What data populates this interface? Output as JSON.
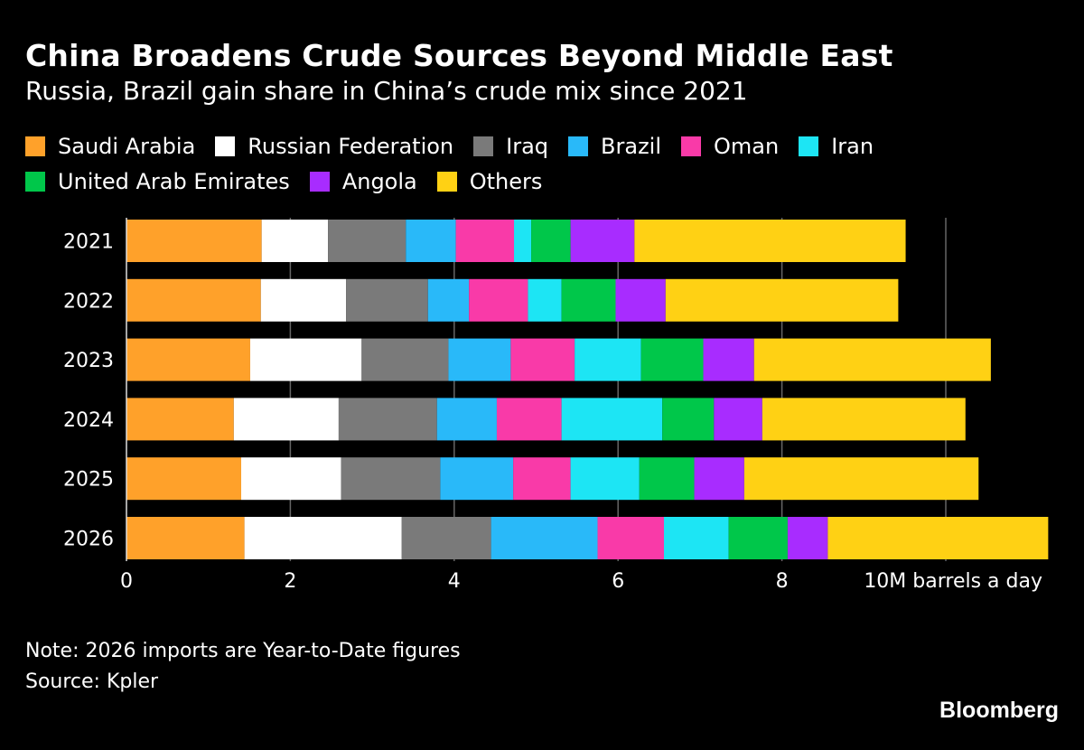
{
  "title": "China Broadens Crude Sources Beyond Middle East",
  "subtitle": "Russia, Brazil gain share in China’s crude mix since 2021",
  "note": "Note: 2026 imports are Year-to-Date figures",
  "source": "Source: Kpler",
  "logo": "Bloomberg",
  "chart_data": {
    "type": "bar",
    "orientation": "horizontal",
    "stacked": true,
    "categories": [
      "2021",
      "2022",
      "2023",
      "2024",
      "2025",
      "2026"
    ],
    "xlim": [
      0,
      11.3
    ],
    "xticks": [
      0,
      2,
      4,
      6,
      8,
      10
    ],
    "xtick_labels": [
      "0",
      "2",
      "4",
      "6",
      "8",
      "10M barrels a day"
    ],
    "grid": true,
    "legend_placement": "top",
    "series": [
      {
        "name": "Saudi Arabia",
        "color": "#ffa12a",
        "values": [
          1.65,
          1.64,
          1.51,
          1.31,
          1.4,
          1.44
        ]
      },
      {
        "name": "Russian Federation",
        "color": "#ffffff",
        "values": [
          0.81,
          1.04,
          1.36,
          1.28,
          1.22,
          1.92
        ]
      },
      {
        "name": "Iraq",
        "color": "#7a7a7a",
        "values": [
          0.95,
          1.0,
          1.06,
          1.2,
          1.21,
          1.09
        ]
      },
      {
        "name": "Brazil",
        "color": "#29b9f9",
        "values": [
          0.61,
          0.5,
          0.76,
          0.73,
          0.89,
          1.3
        ]
      },
      {
        "name": "Oman",
        "color": "#f93aa8",
        "values": [
          0.71,
          0.72,
          0.78,
          0.79,
          0.7,
          0.81
        ]
      },
      {
        "name": "Iran",
        "color": "#1de5f4",
        "values": [
          0.21,
          0.41,
          0.81,
          1.23,
          0.84,
          0.79
        ]
      },
      {
        "name": "United Arab Emirates",
        "color": "#00c74a",
        "values": [
          0.48,
          0.66,
          0.76,
          0.63,
          0.67,
          0.72
        ]
      },
      {
        "name": "Angola",
        "color": "#a82cff",
        "values": [
          0.78,
          0.61,
          0.62,
          0.59,
          0.61,
          0.49
        ]
      },
      {
        "name": "Others",
        "color": "#ffd114",
        "values": [
          3.31,
          2.84,
          2.89,
          2.48,
          2.86,
          2.69
        ]
      }
    ]
  }
}
